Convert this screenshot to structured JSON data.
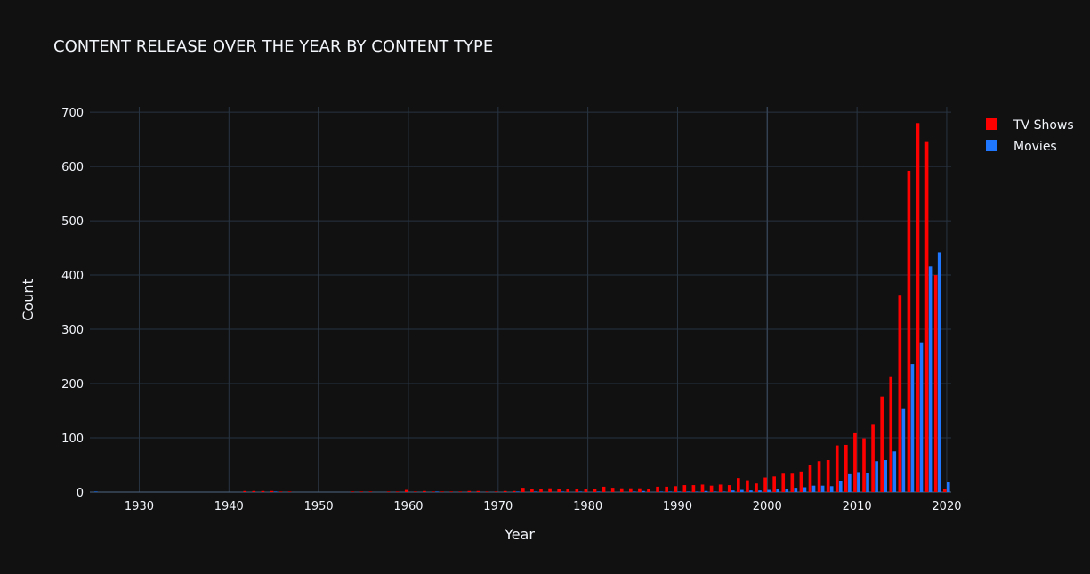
{
  "chart_data": {
    "type": "bar",
    "title": "CONTENT RELEASE OVER THE YEAR BY CONTENT TYPE",
    "xlabel": "Year",
    "ylabel": "Count",
    "xlim": [
      1924.5,
      2020.5
    ],
    "ylim": [
      0,
      710
    ],
    "x_ticks": [
      1930,
      1940,
      1950,
      1960,
      1970,
      1980,
      1990,
      2000,
      2010,
      2020
    ],
    "y_ticks": [
      0,
      100,
      200,
      300,
      400,
      500,
      600,
      700
    ],
    "grid": true,
    "legend_position": "top-right",
    "series": [
      {
        "name": "TV Shows",
        "color": "#ff0000",
        "points": [
          [
            1942,
            2
          ],
          [
            1943,
            2
          ],
          [
            1944,
            2
          ],
          [
            1945,
            2
          ],
          [
            1946,
            1
          ],
          [
            1947,
            1
          ],
          [
            1954,
            1
          ],
          [
            1955,
            1
          ],
          [
            1956,
            1
          ],
          [
            1958,
            1
          ],
          [
            1959,
            1
          ],
          [
            1960,
            4
          ],
          [
            1961,
            1
          ],
          [
            1962,
            2
          ],
          [
            1963,
            1
          ],
          [
            1964,
            1
          ],
          [
            1965,
            1
          ],
          [
            1966,
            1
          ],
          [
            1967,
            2
          ],
          [
            1968,
            2
          ],
          [
            1969,
            1
          ],
          [
            1970,
            1
          ],
          [
            1971,
            2
          ],
          [
            1972,
            2
          ],
          [
            1973,
            8
          ],
          [
            1974,
            6
          ],
          [
            1975,
            5
          ],
          [
            1976,
            7
          ],
          [
            1977,
            5
          ],
          [
            1978,
            6
          ],
          [
            1979,
            6
          ],
          [
            1980,
            6
          ],
          [
            1981,
            6
          ],
          [
            1982,
            10
          ],
          [
            1983,
            8
          ],
          [
            1984,
            7
          ],
          [
            1985,
            7
          ],
          [
            1986,
            7
          ],
          [
            1987,
            6
          ],
          [
            1988,
            10
          ],
          [
            1989,
            10
          ],
          [
            1990,
            11
          ],
          [
            1991,
            13
          ],
          [
            1992,
            13
          ],
          [
            1993,
            14
          ],
          [
            1994,
            12
          ],
          [
            1995,
            14
          ],
          [
            1996,
            13
          ],
          [
            1997,
            26
          ],
          [
            1998,
            22
          ],
          [
            1999,
            16
          ],
          [
            2000,
            27
          ],
          [
            2001,
            29
          ],
          [
            2002,
            34
          ],
          [
            2003,
            34
          ],
          [
            2004,
            38
          ],
          [
            2005,
            50
          ],
          [
            2006,
            57
          ],
          [
            2007,
            59
          ],
          [
            2008,
            86
          ],
          [
            2009,
            87
          ],
          [
            2010,
            110
          ],
          [
            2011,
            99
          ],
          [
            2012,
            124
          ],
          [
            2013,
            176
          ],
          [
            2014,
            212
          ],
          [
            2015,
            362
          ],
          [
            2016,
            592
          ],
          [
            2017,
            680
          ],
          [
            2018,
            645
          ],
          [
            2019,
            400
          ],
          [
            2020,
            5
          ]
        ]
      },
      {
        "name": "Movies",
        "color": "#1f77ff",
        "points": [
          [
            1925,
            1
          ],
          [
            1945,
            1
          ],
          [
            1963,
            1
          ],
          [
            1972,
            1
          ],
          [
            1974,
            1
          ],
          [
            1977,
            1
          ],
          [
            1979,
            1
          ],
          [
            1981,
            1
          ],
          [
            1985,
            1
          ],
          [
            1986,
            2
          ],
          [
            1988,
            1
          ],
          [
            1989,
            1
          ],
          [
            1990,
            1
          ],
          [
            1991,
            1
          ],
          [
            1992,
            1
          ],
          [
            1993,
            2
          ],
          [
            1994,
            1
          ],
          [
            1995,
            1
          ],
          [
            1996,
            3
          ],
          [
            1997,
            4
          ],
          [
            1998,
            3
          ],
          [
            1999,
            3
          ],
          [
            2000,
            4
          ],
          [
            2001,
            5
          ],
          [
            2002,
            6
          ],
          [
            2003,
            8
          ],
          [
            2004,
            9
          ],
          [
            2005,
            12
          ],
          [
            2006,
            12
          ],
          [
            2007,
            11
          ],
          [
            2008,
            20
          ],
          [
            2009,
            33
          ],
          [
            2010,
            37
          ],
          [
            2011,
            36
          ],
          [
            2012,
            57
          ],
          [
            2013,
            59
          ],
          [
            2014,
            75
          ],
          [
            2015,
            153
          ],
          [
            2016,
            236
          ],
          [
            2017,
            276
          ],
          [
            2018,
            416
          ],
          [
            2019,
            442
          ],
          [
            2020,
            18
          ]
        ]
      }
    ]
  }
}
